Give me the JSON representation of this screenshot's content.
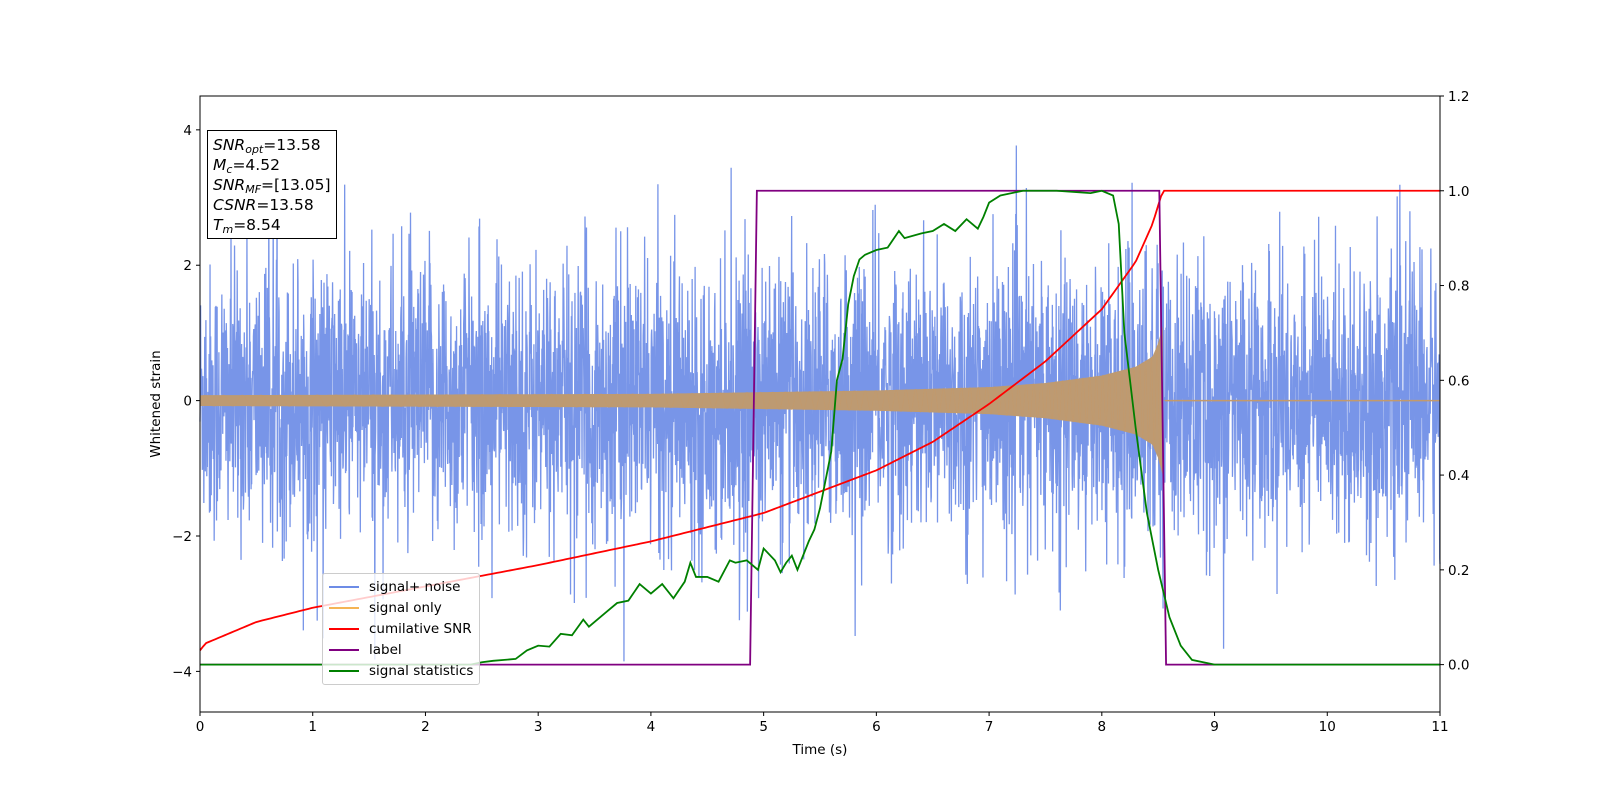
{
  "chart_data": {
    "type": "line",
    "xlabel": "Time (s)",
    "ylabel": "Whitened strain",
    "xlim": [
      0,
      11
    ],
    "ylim": [
      -4.6,
      4.5
    ],
    "ylim_right": [
      -0.1,
      1.2
    ],
    "x_ticks": [
      "0",
      "1",
      "2",
      "3",
      "4",
      "5",
      "6",
      "7",
      "8",
      "9",
      "10",
      "11"
    ],
    "y_ticks_left": [
      "−4",
      "−2",
      "0",
      "2",
      "4"
    ],
    "y_ticks_right": [
      "0.0",
      "0.2",
      "0.4",
      "0.6",
      "0.8",
      "1.0",
      "1.2"
    ],
    "legend_position": "lower-left",
    "info_box": {
      "snr_opt": "=13.58",
      "mc": "=4.52",
      "snr_mf": "=[13.05]",
      "csnr": "=13.58",
      "tm": "=8.54"
    },
    "series": [
      {
        "name": "signal+ noise",
        "axis": "left",
        "color": "#6d8ce6",
        "description_values": {
          "noise_std": 1.0,
          "approx_range": [
            -3.9,
            4.05
          ],
          "merger_time": 8.54
        }
      },
      {
        "name": "signal only",
        "axis": "left",
        "color": "#f5b455",
        "envelope": {
          "t": [
            0,
            2,
            4,
            6,
            7,
            7.5,
            8,
            8.3,
            8.45,
            8.5,
            8.54,
            8.55,
            11
          ],
          "amp": [
            0.08,
            0.09,
            0.1,
            0.15,
            0.2,
            0.26,
            0.37,
            0.5,
            0.65,
            0.85,
            1.1,
            0,
            0
          ]
        }
      },
      {
        "name": "cumilative SNR",
        "axis": "right",
        "color": "#ff0000",
        "points": [
          [
            0,
            0.03
          ],
          [
            0.05,
            0.045
          ],
          [
            0.5,
            0.09
          ],
          [
            1,
            0.12
          ],
          [
            2,
            0.165
          ],
          [
            3,
            0.21
          ],
          [
            4,
            0.26
          ],
          [
            5,
            0.32
          ],
          [
            6,
            0.41
          ],
          [
            6.5,
            0.47
          ],
          [
            7,
            0.55
          ],
          [
            7.5,
            0.64
          ],
          [
            8,
            0.75
          ],
          [
            8.3,
            0.85
          ],
          [
            8.45,
            0.93
          ],
          [
            8.54,
            1.0
          ],
          [
            11,
            1.0
          ]
        ]
      },
      {
        "name": "label",
        "axis": "right",
        "color": "#800080",
        "points": [
          [
            0,
            0.0
          ],
          [
            4.88,
            0.0
          ],
          [
            4.94,
            1.0
          ],
          [
            8.51,
            1.0
          ],
          [
            8.57,
            0.0
          ],
          [
            11,
            0.0
          ]
        ]
      },
      {
        "name": "signal statistics",
        "axis": "right",
        "color": "#008000",
        "points": [
          [
            0,
            0.0
          ],
          [
            2.4,
            0.0
          ],
          [
            2.5,
            0.005
          ],
          [
            2.6,
            0.008
          ],
          [
            2.7,
            0.01
          ],
          [
            2.8,
            0.012
          ],
          [
            2.9,
            0.03
          ],
          [
            3.0,
            0.04
          ],
          [
            3.1,
            0.038
          ],
          [
            3.2,
            0.065
          ],
          [
            3.3,
            0.062
          ],
          [
            3.4,
            0.095
          ],
          [
            3.45,
            0.08
          ],
          [
            3.55,
            0.1
          ],
          [
            3.6,
            0.11
          ],
          [
            3.7,
            0.13
          ],
          [
            3.8,
            0.135
          ],
          [
            3.9,
            0.17
          ],
          [
            4.0,
            0.15
          ],
          [
            4.1,
            0.17
          ],
          [
            4.2,
            0.14
          ],
          [
            4.3,
            0.175
          ],
          [
            4.35,
            0.215
          ],
          [
            4.4,
            0.185
          ],
          [
            4.5,
            0.185
          ],
          [
            4.6,
            0.175
          ],
          [
            4.7,
            0.22
          ],
          [
            4.75,
            0.215
          ],
          [
            4.85,
            0.22
          ],
          [
            4.95,
            0.2
          ],
          [
            5.0,
            0.245
          ],
          [
            5.1,
            0.22
          ],
          [
            5.15,
            0.195
          ],
          [
            5.2,
            0.215
          ],
          [
            5.25,
            0.23
          ],
          [
            5.3,
            0.2
          ],
          [
            5.4,
            0.26
          ],
          [
            5.45,
            0.285
          ],
          [
            5.5,
            0.33
          ],
          [
            5.6,
            0.45
          ],
          [
            5.65,
            0.6
          ],
          [
            5.7,
            0.645
          ],
          [
            5.75,
            0.76
          ],
          [
            5.8,
            0.82
          ],
          [
            5.85,
            0.855
          ],
          [
            5.9,
            0.865
          ],
          [
            6.0,
            0.875
          ],
          [
            6.1,
            0.88
          ],
          [
            6.2,
            0.915
          ],
          [
            6.25,
            0.9
          ],
          [
            6.4,
            0.91
          ],
          [
            6.5,
            0.915
          ],
          [
            6.6,
            0.93
          ],
          [
            6.7,
            0.915
          ],
          [
            6.8,
            0.94
          ],
          [
            6.9,
            0.92
          ],
          [
            6.95,
            0.945
          ],
          [
            7.0,
            0.975
          ],
          [
            7.1,
            0.99
          ],
          [
            7.3,
            1.0
          ],
          [
            7.6,
            1.0
          ],
          [
            7.9,
            0.995
          ],
          [
            8.0,
            1.0
          ],
          [
            8.1,
            0.99
          ],
          [
            8.15,
            0.93
          ],
          [
            8.2,
            0.7
          ],
          [
            8.3,
            0.5
          ],
          [
            8.4,
            0.32
          ],
          [
            8.5,
            0.2
          ],
          [
            8.6,
            0.1
          ],
          [
            8.7,
            0.04
          ],
          [
            8.8,
            0.01
          ],
          [
            9.0,
            0.0
          ],
          [
            11,
            0.0
          ]
        ]
      }
    ]
  }
}
